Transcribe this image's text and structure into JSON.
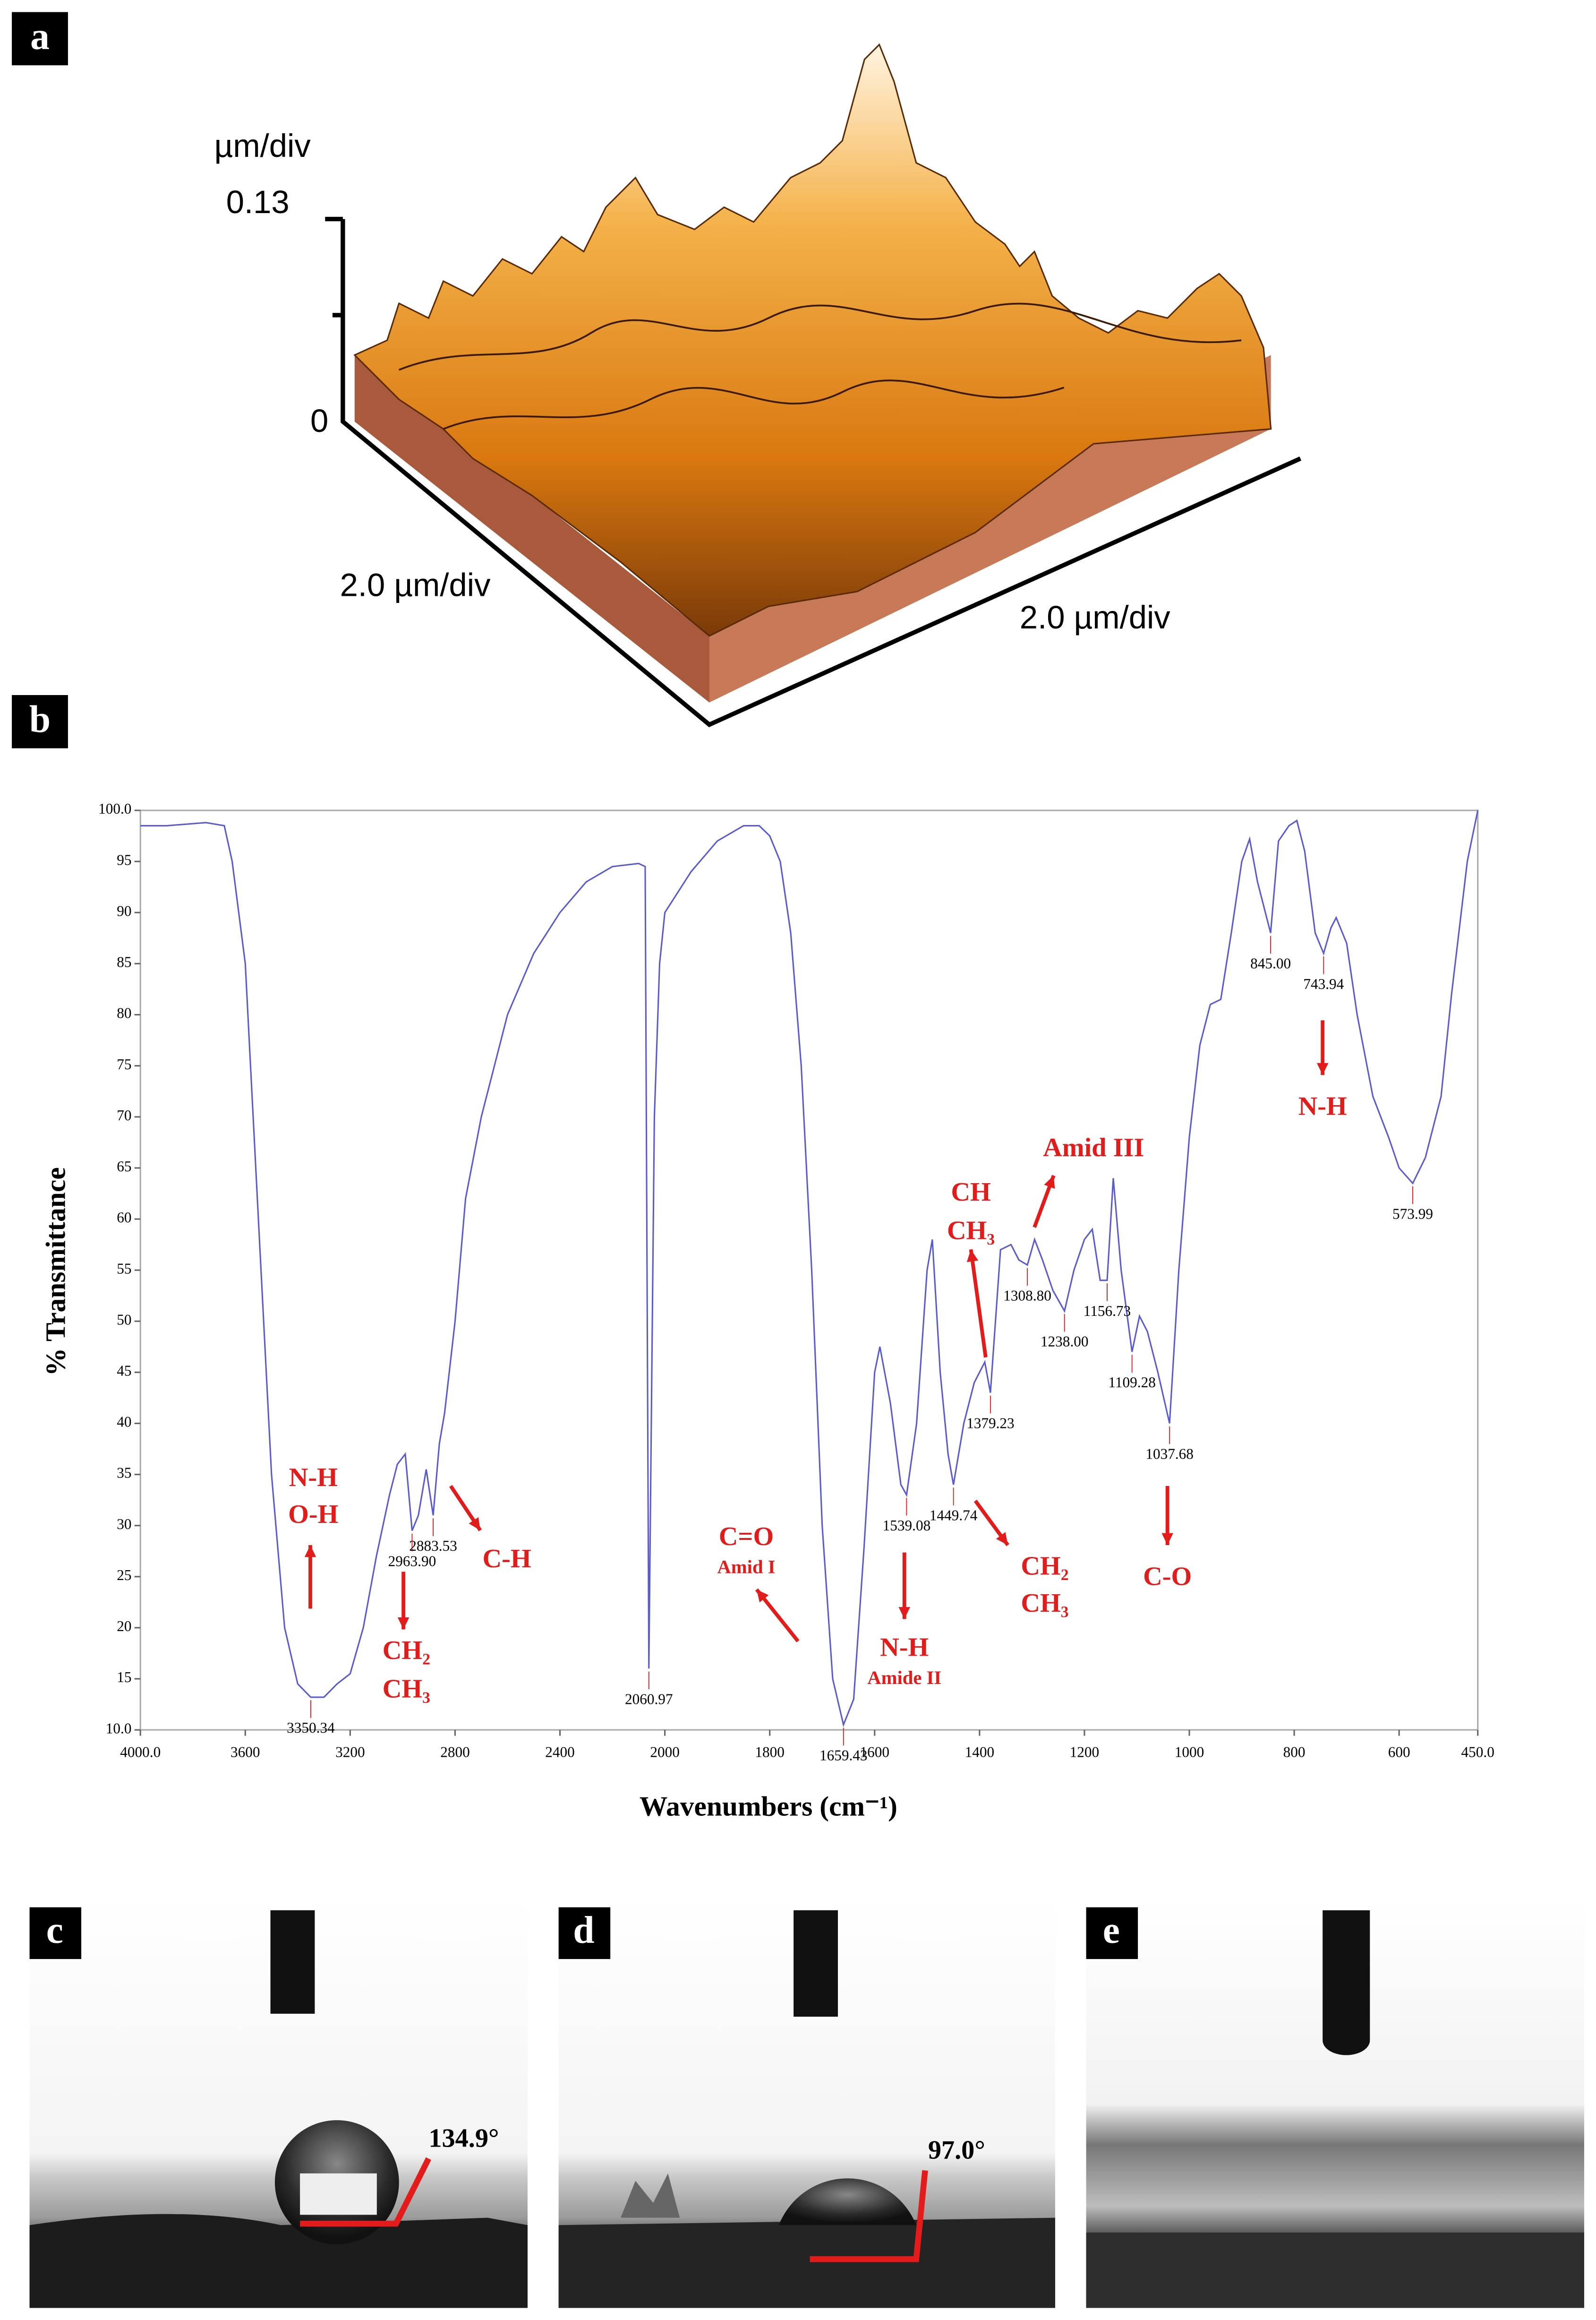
{
  "panels": [
    {
      "label": "a"
    },
    {
      "label": "b"
    },
    {
      "label": "c"
    },
    {
      "label": "d"
    },
    {
      "label": "e"
    }
  ],
  "afm": {
    "z_unit": "µm/div",
    "z_max": "0.13",
    "z_min": "0",
    "x_scale": "2.0 µm/div",
    "y_scale": "2.0 µm/div"
  },
  "chart_data": {
    "type": "line",
    "xlabel": "Wavenumbers (cm⁻¹)",
    "ylabel": "% Transmittance",
    "color": "#5b5bd0",
    "xlim": [
      4000,
      450
    ],
    "x_scale_break": 2000,
    "ylim": [
      10,
      100
    ],
    "xticks": [
      {
        "value": 4000,
        "label": "4000.0"
      },
      3600,
      3200,
      2800,
      2400,
      2000,
      1800,
      1600,
      1400,
      1200,
      1000,
      800,
      600,
      {
        "value": 450,
        "label": "450.0"
      }
    ],
    "yticks": [
      {
        "value": 10,
        "label": "10.0"
      },
      15,
      20,
      25,
      30,
      35,
      40,
      45,
      50,
      55,
      60,
      65,
      70,
      75,
      80,
      85,
      90,
      95,
      {
        "value": 100,
        "label": "100.0"
      }
    ],
    "x": [
      4000,
      3900,
      3750,
      3680,
      3650,
      3600,
      3550,
      3500,
      3450,
      3400,
      3350.34,
      3300,
      3250,
      3200,
      3150,
      3100,
      3050,
      3020,
      2990,
      2963.9,
      2940,
      2910,
      2883.53,
      2860,
      2840,
      2800,
      2760,
      2700,
      2600,
      2500,
      2400,
      2300,
      2200,
      2100,
      2075,
      2060.97,
      2040,
      2020,
      2000,
      1950,
      1900,
      1850,
      1820,
      1800,
      1780,
      1760,
      1740,
      1720,
      1700,
      1680,
      1659.43,
      1640,
      1620,
      1600,
      1590,
      1570,
      1550,
      1539.08,
      1520,
      1500,
      1490,
      1475,
      1460,
      1449.74,
      1430,
      1410,
      1390,
      1379.23,
      1360,
      1340,
      1325,
      1308.8,
      1295,
      1280,
      1260,
      1238,
      1220,
      1200,
      1185,
      1170,
      1156.73,
      1145,
      1130,
      1109.28,
      1095,
      1080,
      1060,
      1037.68,
      1020,
      1000,
      980,
      960,
      940,
      920,
      900,
      885,
      870,
      845,
      830,
      810,
      795,
      780,
      760,
      743.94,
      730,
      720,
      700,
      680,
      650,
      620,
      600,
      573.99,
      550,
      520,
      500,
      470,
      450
    ],
    "values": [
      98.5,
      98.5,
      98.8,
      98.5,
      95,
      85,
      60,
      35,
      20,
      14.5,
      13.2,
      13.2,
      14.5,
      15.5,
      20,
      27,
      33,
      36,
      37,
      29.5,
      31,
      35.5,
      31,
      38,
      41,
      50,
      62,
      70,
      80,
      86,
      90,
      93,
      94.5,
      94.8,
      94.5,
      16,
      70,
      85,
      90,
      94,
      97,
      98.5,
      98.5,
      97.5,
      95,
      88,
      75,
      55,
      30,
      15,
      10.5,
      13,
      28,
      45,
      47.5,
      42,
      34,
      33,
      40,
      55,
      58,
      45,
      37,
      34,
      40,
      44,
      46,
      43,
      57,
      57.5,
      56,
      55.5,
      58,
      56,
      53,
      51,
      55,
      58,
      59,
      54,
      54,
      64,
      55,
      47,
      50.5,
      49,
      45,
      40,
      55,
      68,
      77,
      81,
      81.5,
      88,
      95,
      97.2,
      93,
      88,
      97,
      98.5,
      99,
      96,
      88,
      86,
      88.5,
      89.5,
      87,
      80,
      72,
      68,
      65,
      63.5,
      66,
      72,
      82,
      95,
      100
    ],
    "peaks": [
      {
        "x": 3350.34,
        "label": "3350.34"
      },
      {
        "x": 2963.9,
        "label": "2963.90"
      },
      {
        "x": 2883.53,
        "label": "2883.53"
      },
      {
        "x": 2060.97,
        "label": "2060.97"
      },
      {
        "x": 1659.43,
        "label": "1659.43"
      },
      {
        "x": 1539.08,
        "label": "1539.08"
      },
      {
        "x": 1449.74,
        "label": "1449.74"
      },
      {
        "x": 1379.23,
        "label": "1379.23"
      },
      {
        "x": 1308.8,
        "label": "1308.80"
      },
      {
        "x": 1238,
        "label": "1238.00"
      },
      {
        "x": 1156.73,
        "label": "1156.73"
      },
      {
        "x": 1109.28,
        "label": "1109.28"
      },
      {
        "x": 1037.68,
        "label": "1037.68"
      },
      {
        "x": 845,
        "label": "845.00"
      },
      {
        "x": 743.94,
        "label": "743.94"
      },
      {
        "x": 573.99,
        "label": "573.99"
      }
    ],
    "annotations": [
      {
        "text": "N-H"
      },
      {
        "text": "O-H"
      },
      {
        "text": "CH₂"
      },
      {
        "text": "CH₃"
      },
      {
        "text": "C-H"
      },
      {
        "text": "C=O"
      },
      {
        "text": "Amid I"
      },
      {
        "text": "N-H"
      },
      {
        "text": "Amide II"
      },
      {
        "text": "CH₂"
      },
      {
        "text": "CH₃"
      },
      {
        "text": "CH"
      },
      {
        "text": "CH₃"
      },
      {
        "text": "Amid III"
      },
      {
        "text": "C-O"
      },
      {
        "text": "N-H"
      }
    ]
  },
  "contact_angles": {
    "c": "134.9°",
    "d": "97.0°"
  }
}
